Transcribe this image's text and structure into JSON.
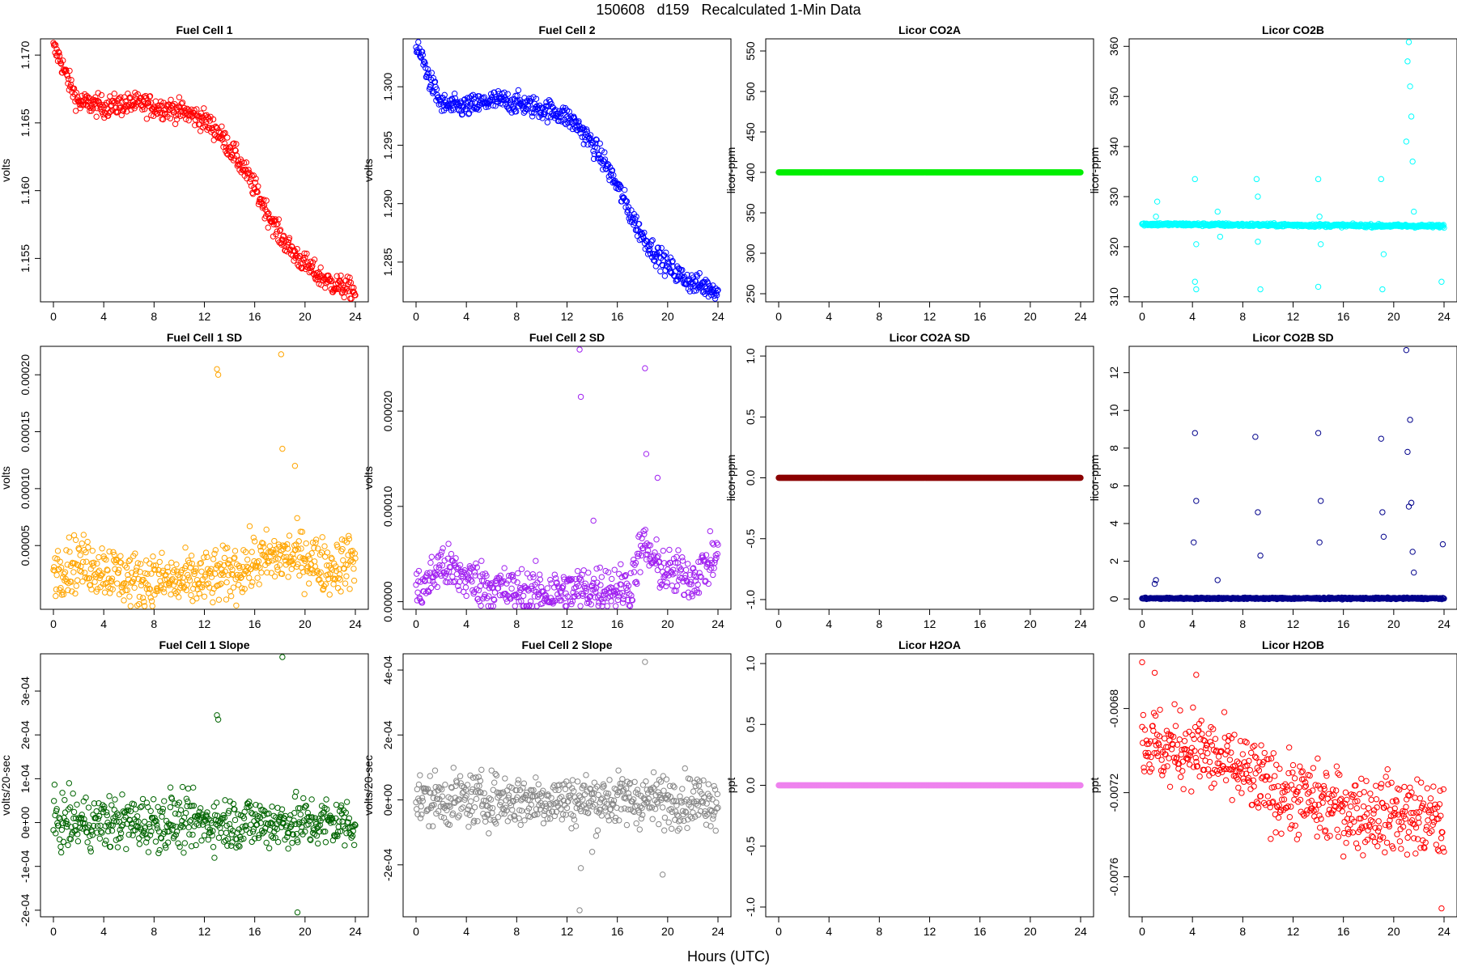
{
  "page": {
    "title": "150608   d159   Recalculated 1-Min Data",
    "x_axis_title": "Hours (UTC)"
  },
  "chart_data": [
    {
      "type": "scatter",
      "title": "Fuel Cell 1",
      "ylabel": "volts",
      "xlabel": "",
      "color": "#ff0000",
      "xlim": [
        0,
        24
      ],
      "ylim": [
        1.1518,
        1.1712
      ],
      "xticks": [
        0,
        4,
        8,
        12,
        16,
        20,
        24
      ],
      "yticks": [
        1.155,
        1.16,
        1.165,
        1.17
      ],
      "ytick_labels": [
        "1.155",
        "1.160",
        "1.165",
        "1.170"
      ],
      "series": [
        {
          "x": [
            0,
            0.5,
            1,
            2,
            3,
            4,
            5,
            6,
            7,
            8,
            9,
            10,
            11,
            12,
            13,
            14,
            15,
            16,
            17,
            18,
            19,
            20,
            21,
            22,
            23,
            24
          ],
          "values": [
            1.1705,
            1.1698,
            1.1685,
            1.1665,
            1.1664,
            1.1662,
            1.1663,
            1.1664,
            1.1664,
            1.1662,
            1.1661,
            1.1659,
            1.1656,
            1.1652,
            1.1644,
            1.1632,
            1.1618,
            1.1602,
            1.1584,
            1.1567,
            1.1555,
            1.1546,
            1.1538,
            1.1532,
            1.1529,
            1.1526
          ],
          "jitter": 0.0004
        }
      ]
    },
    {
      "type": "scatter",
      "title": "Fuel Cell 2",
      "ylabel": "volts",
      "xlabel": "",
      "color": "#0000ff",
      "xlim": [
        0,
        24
      ],
      "ylim": [
        1.2816,
        1.3041
      ],
      "xticks": [
        0,
        4,
        8,
        12,
        16,
        20,
        24
      ],
      "yticks": [
        1.285,
        1.29,
        1.295,
        1.3
      ],
      "ytick_labels": [
        "1.285",
        "1.290",
        "1.295",
        "1.300"
      ],
      "series": [
        {
          "x": [
            0,
            0.5,
            1,
            2,
            3,
            4,
            5,
            6,
            7,
            8,
            9,
            10,
            11,
            12,
            13,
            14,
            15,
            16,
            17,
            18,
            19,
            20,
            21,
            22,
            23,
            24
          ],
          "values": [
            1.3032,
            1.3025,
            1.3008,
            1.2985,
            1.2983,
            1.2983,
            1.2985,
            1.2988,
            1.2988,
            1.2986,
            1.2984,
            1.2981,
            1.2979,
            1.2974,
            1.2965,
            1.2951,
            1.2935,
            1.2915,
            1.2892,
            1.2872,
            1.2858,
            1.2847,
            1.2838,
            1.2832,
            1.2829,
            1.2826
          ],
          "jitter": 0.00045
        }
      ]
    },
    {
      "type": "scatter",
      "title": "Licor CO2A",
      "ylabel": "licor-ppm",
      "xlabel": "",
      "color": "#00ee00",
      "xlim": [
        0,
        24
      ],
      "ylim": [
        240,
        565
      ],
      "xticks": [
        0,
        4,
        8,
        12,
        16,
        20,
        24
      ],
      "yticks": [
        250,
        300,
        350,
        400,
        450,
        500,
        550
      ],
      "ytick_labels": [
        "250",
        "300",
        "350",
        "400",
        "450",
        "500",
        "550"
      ],
      "series": [
        {
          "x": [
            0,
            24
          ],
          "values": [
            400,
            400
          ],
          "jitter": 0
        }
      ]
    },
    {
      "type": "scatter",
      "title": "Licor CO2B",
      "ylabel": "licor-ppm",
      "xlabel": "",
      "color": "#00ffff",
      "xlim": [
        0,
        24
      ],
      "ylim": [
        309,
        361.5
      ],
      "xticks": [
        0,
        4,
        8,
        12,
        16,
        20,
        24
      ],
      "yticks": [
        310,
        320,
        330,
        340,
        350,
        360
      ],
      "ytick_labels": [
        "310",
        "320",
        "330",
        "340",
        "350",
        "360"
      ],
      "series": [
        {
          "x": [
            0,
            24
          ],
          "values": [
            324.5,
            324.1
          ],
          "jitter": 0.15,
          "outliers_x": [
            1.1,
            1.2,
            4.2,
            4.2,
            4.3,
            4.3,
            6.0,
            6.2,
            9.1,
            9.2,
            9.2,
            9.4,
            14.0,
            14.0,
            14.1,
            14.2,
            19.0,
            19.1,
            19.2,
            21.0,
            21.1,
            21.2,
            21.3,
            21.4,
            21.5,
            21.6,
            23.8
          ],
          "outliers_y": [
            326,
            329,
            333.5,
            313,
            311.5,
            320.5,
            327,
            322,
            333.5,
            330,
            321,
            311.5,
            333.5,
            312,
            326,
            320.5,
            333.5,
            311.5,
            318.5,
            341,
            357,
            361,
            352,
            346,
            337,
            327,
            313
          ]
        }
      ]
    },
    {
      "type": "scatter",
      "title": "Fuel Cell 1 SD",
      "ylabel": "volts",
      "xlabel": "",
      "color": "#ffa500",
      "xlim": [
        0,
        24
      ],
      "ylim": [
        -6e-06,
        0.000225
      ],
      "xticks": [
        0,
        4,
        8,
        12,
        16,
        20,
        24
      ],
      "yticks": [
        5e-05,
        0.0001,
        0.00015,
        0.0002
      ],
      "ytick_labels": [
        "0.00005",
        "0.00010",
        "0.00015",
        "0.00020"
      ],
      "series": [
        {
          "x": [
            0,
            2,
            4,
            6,
            8,
            10,
            12,
            14,
            16,
            18,
            20,
            22,
            24
          ],
          "values": [
            3e-05,
            3.5e-05,
            3e-05,
            2e-05,
            2e-05,
            1.8e-05,
            2e-05,
            2.5e-05,
            3.5e-05,
            4e-05,
            4e-05,
            3e-05,
            4e-05
          ],
          "jitter": 1.2e-05,
          "outliers_x": [
            13.0,
            13.1,
            18.1,
            18.2,
            19.2
          ],
          "outliers_y": [
            0.000205,
            0.0002,
            0.000218,
            0.000135,
            0.00012
          ]
        }
      ]
    },
    {
      "type": "scatter",
      "title": "Fuel Cell 2 SD",
      "ylabel": "volts",
      "xlabel": "",
      "color": "#a020f0",
      "xlim": [
        0,
        24
      ],
      "ylim": [
        -8e-06,
        0.000268
      ],
      "xticks": [
        0,
        4,
        8,
        12,
        16,
        20,
        24
      ],
      "yticks": [
        0,
        0.0001,
        0.0002
      ],
      "ytick_labels": [
        "0.00000",
        "0.00010",
        "0.00020"
      ],
      "series": [
        {
          "x": [
            0,
            1,
            2,
            3,
            4,
            6,
            8,
            10,
            12,
            14,
            16,
            17,
            18,
            19,
            20,
            22,
            24
          ],
          "values": [
            1e-05,
            2e-05,
            4e-05,
            3e-05,
            2.5e-05,
            1.5e-05,
            1e-05,
            1e-05,
            1e-05,
            1.5e-05,
            1.5e-05,
            1.5e-05,
            6e-05,
            4e-05,
            3e-05,
            2.5e-05,
            5e-05
          ],
          "jitter": 1.2e-05,
          "outliers_x": [
            13.0,
            13.1,
            14.1,
            18.2,
            18.3,
            19.2
          ],
          "outliers_y": [
            0.000265,
            0.000215,
            8.5e-05,
            0.000245,
            0.000155,
            0.00013
          ]
        }
      ]
    },
    {
      "type": "scatter",
      "title": "Licor CO2A SD",
      "ylabel": "licor-ppm",
      "xlabel": "",
      "color": "#8b0000",
      "xlim": [
        0,
        24
      ],
      "ylim": [
        -1.08,
        1.08
      ],
      "xticks": [
        0,
        4,
        8,
        12,
        16,
        20,
        24
      ],
      "yticks": [
        -1,
        -0.5,
        0,
        0.5,
        1
      ],
      "ytick_labels": [
        "-1.0",
        "-0.5",
        "0.0",
        "0.5",
        "1.0"
      ],
      "series": [
        {
          "x": [
            0,
            24
          ],
          "values": [
            0,
            0
          ],
          "jitter": 0
        }
      ]
    },
    {
      "type": "scatter",
      "title": "Licor CO2B SD",
      "ylabel": "licor-ppm",
      "xlabel": "",
      "color": "#00008b",
      "xlim": [
        0,
        24
      ],
      "ylim": [
        -0.55,
        13.4
      ],
      "xticks": [
        0,
        4,
        8,
        12,
        16,
        20,
        24
      ],
      "yticks": [
        0,
        2,
        4,
        6,
        8,
        10,
        12
      ],
      "ytick_labels": [
        "0",
        "2",
        "4",
        "6",
        "8",
        "10",
        "12"
      ],
      "series": [
        {
          "x": [
            0,
            24
          ],
          "values": [
            0.03,
            0.03
          ],
          "jitter": 0.02,
          "outliers_x": [
            1.0,
            1.1,
            4.1,
            4.2,
            4.3,
            6.0,
            9.0,
            9.2,
            9.4,
            14.0,
            14.1,
            14.2,
            19.0,
            19.1,
            19.2,
            21.0,
            21.1,
            21.2,
            21.3,
            21.4,
            21.5,
            21.6,
            23.9
          ],
          "outliers_y": [
            0.8,
            1.0,
            3.0,
            8.8,
            5.2,
            1.0,
            8.6,
            4.6,
            2.3,
            8.8,
            3.0,
            5.2,
            8.5,
            4.6,
            3.3,
            13.2,
            7.8,
            4.9,
            9.5,
            5.1,
            2.5,
            1.4,
            2.9
          ]
        }
      ]
    },
    {
      "type": "scatter",
      "title": "Fuel Cell 1 Slope",
      "ylabel": "volts/20-sec",
      "xlabel": "",
      "color": "#006400",
      "xlim": [
        0,
        24
      ],
      "ylim": [
        -0.000215,
        0.000385
      ],
      "xticks": [
        0,
        4,
        8,
        12,
        16,
        20,
        24
      ],
      "yticks": [
        -0.0002,
        -0.0001,
        0,
        0.0001,
        0.0002,
        0.0003
      ],
      "ytick_labels": [
        "-2e-04",
        "-1e-04",
        "0e+00",
        "1e-04",
        "2e-04",
        "3e-04"
      ],
      "series": [
        {
          "x": [
            0,
            2,
            4,
            6,
            8,
            12,
            16,
            18,
            20,
            22,
            24
          ],
          "values": [
            0,
            0,
            0,
            0,
            0,
            0,
            0,
            0,
            0,
            0,
            0
          ],
          "jitter": 3e-05,
          "outliers_x": [
            13.0,
            13.1,
            18.2,
            19.4,
            9.3
          ],
          "outliers_y": [
            0.000245,
            0.000235,
            0.00038,
            -0.000205,
            8e-05
          ]
        }
      ]
    },
    {
      "type": "scatter",
      "title": "Fuel Cell 2 Slope",
      "ylabel": "volts/20-sec",
      "xlabel": "",
      "color": "#888888",
      "xlim": [
        0,
        24
      ],
      "ylim": [
        -0.00036,
        0.00045
      ],
      "xticks": [
        0,
        4,
        8,
        12,
        16,
        20,
        24
      ],
      "yticks": [
        -0.0002,
        0,
        0.0002,
        0.0004
      ],
      "ytick_labels": [
        "-2e-04",
        "0e+00",
        "2e-04",
        "4e-04"
      ],
      "series": [
        {
          "x": [
            0,
            2,
            4,
            8,
            12,
            16,
            18,
            20,
            22,
            24
          ],
          "values": [
            0,
            0,
            0,
            0,
            0,
            0,
            0,
            0,
            0,
            0
          ],
          "jitter": 4e-05,
          "outliers_x": [
            13.0,
            13.1,
            14.0,
            18.2,
            19.6
          ],
          "outliers_y": [
            -0.00034,
            -0.00021,
            -0.00016,
            0.000425,
            -0.00023
          ]
        }
      ]
    },
    {
      "type": "scatter",
      "title": "Licor H2OA",
      "ylabel": "ppt",
      "xlabel": "",
      "color": "#ee82ee",
      "xlim": [
        0,
        24
      ],
      "ylim": [
        -1.08,
        1.08
      ],
      "xticks": [
        0,
        4,
        8,
        12,
        16,
        20,
        24
      ],
      "yticks": [
        -1,
        -0.5,
        0,
        0.5,
        1
      ],
      "ytick_labels": [
        "-1.0",
        "-0.5",
        "0.0",
        "0.5",
        "1.0"
      ],
      "series": [
        {
          "x": [
            0,
            24
          ],
          "values": [
            0,
            0
          ],
          "jitter": 0
        }
      ]
    },
    {
      "type": "scatter",
      "title": "Licor H2OB",
      "ylabel": "ppt",
      "xlabel": "",
      "color": "#ff0000",
      "xlim": [
        0,
        24
      ],
      "ylim": [
        -0.00779,
        -0.00654
      ],
      "xticks": [
        0,
        4,
        8,
        12,
        16,
        20,
        24
      ],
      "yticks": [
        -0.0068,
        -0.0072,
        -0.0076
      ],
      "ytick_labels": [
        "-0.0068",
        "-0.0072",
        "-0.0076"
      ],
      "series": [
        {
          "x": [
            0,
            2,
            4,
            6,
            8,
            10,
            12,
            14,
            16,
            18,
            20,
            22,
            24
          ],
          "values": [
            -0.00695,
            -0.007,
            -0.00698,
            -0.00705,
            -0.0071,
            -0.00718,
            -0.00722,
            -0.00725,
            -0.00728,
            -0.0073,
            -0.0073,
            -0.00732,
            -0.00735
          ],
          "jitter": 9e-05,
          "outliers_x": [
            0.0,
            1.0,
            4.3,
            23.8
          ],
          "outliers_y": [
            -0.00658,
            -0.00663,
            -0.00664,
            -0.00775
          ]
        }
      ]
    }
  ]
}
